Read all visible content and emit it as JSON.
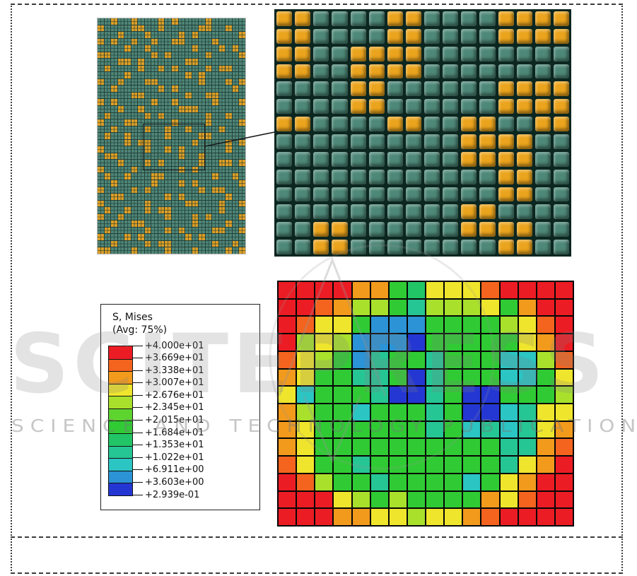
{
  "page": {
    "background": "#ffffff",
    "frame_color": "#3c3c3c"
  },
  "watermark": {
    "brand": "SCITEPRESS",
    "tagline": "SCIENCE AND TECHNOLOGY PUBLICATIONS",
    "color": "#808080"
  },
  "microstructure": {
    "description": "random two-phase RVE fine mesh, orange inclusions in teal matrix",
    "matrix_color": "#4f8577",
    "inclusion_color": "#dc9f28",
    "grid_line_color": "#223f38",
    "cols": 22,
    "rows": 35,
    "pattern": [
      "..#..#...#.#....#.....",
      "#....##..#.....##..#..",
      "...#...#....#.#......#",
      "#.#..#..#..##....#....",
      "....#..#......#...#.#.",
      "##......#.#.....#....#",
      "...##.#......##.......",
      ".#....#..#.#....#.##..",
      "....#........#.#......",
      "#..#...##......#...#.#",
      "..#......#.#........#.",
      ".....##......#..##....",
      "#.#.....#..#.....#...#",
      "...#..#.....###.......",
      ".#.....#.#......#..#..",
      "#...##.....#....#....#",
      "..#....#..#..#....#...",
      ".#..#.....#....##.....",
      "....#.##......#....#.#",
      "#......#..#.#......#..",
      ".##.........#..#......",
      "...#...#.#.....#..##.#",
      "#....#......#.#.......",
      ".#..#...##.......#..#.",
      "..#.....#...#.#......#",
      "#....#.#.......#.##...",
      "..##......#.#......#..",
      "#......#.....##...#..#",
      ".#..#..#.##.......#...",
      "#..#......#...#.#....#",
      "..#..##.......#....#..",
      ".#.....#..#.#....##..#",
      "#...#.#......#.#......",
      "..#....#.##......#..#.",
      "##...#....#...#....#.#"
    ]
  },
  "zoom_view": {
    "description": "zoomed detail of boxed mesh region",
    "matrix_color": "#4e8878",
    "inclusion_color": "#eba41d",
    "cols": 16,
    "rows": 14,
    "pattern": [
      "##....##....####",
      "##....##....####",
      "##..####........",
      "##..####........",
      "....##......####",
      "....##......####",
      "##....##..##..##",
      "..........####..",
      "..........####..",
      "............##..",
      "............##..",
      "..........##....",
      "..##......####..",
      "..##........##.."
    ]
  },
  "legend": {
    "title": "S, Mises",
    "subtitle": "(Avg: 75%)",
    "tick_labels": [
      "+4.000e+01",
      "+3.669e+01",
      "+3.338e+01",
      "+3.007e+01",
      "+2.676e+01",
      "+2.345e+01",
      "+2.015e+01",
      "+1.684e+01",
      "+1.353e+01",
      "+1.022e+01",
      "+6.911e+00",
      "+3.603e+00",
      "+2.939e-01"
    ],
    "band_colors": [
      "#ec1c24",
      "#f4641e",
      "#f29a1c",
      "#efe52c",
      "#a8e02c",
      "#5ed42e",
      "#30cb34",
      "#22c565",
      "#26c594",
      "#2bc5c3",
      "#2b93d6",
      "#2437d2"
    ]
  },
  "stress_plot": {
    "description": "von Mises stress contour on 16x14 element grid; values map to legend band colors (index 0 = max/red, 11 = min/blue)",
    "cols": 16,
    "rows": 14,
    "palette": [
      "#ec1c24",
      "#f4641e",
      "#f29a1c",
      "#efe52c",
      "#a8e02c",
      "#5ed42e",
      "#30cb34",
      "#22c565",
      "#26c594",
      "#2bc5c3",
      "#2b93d6",
      "#2437d2"
    ],
    "cells": [
      [
        0,
        0,
        0,
        0,
        2,
        2,
        6,
        7,
        3,
        3,
        3,
        1,
        0,
        0,
        0,
        0
      ],
      [
        0,
        0,
        1,
        2,
        4,
        4,
        6,
        8,
        4,
        4,
        4,
        3,
        6,
        2,
        0,
        0
      ],
      [
        0,
        1,
        3,
        3,
        6,
        10,
        10,
        10,
        6,
        6,
        6,
        6,
        4,
        3,
        1,
        0
      ],
      [
        0,
        4,
        3,
        4,
        10,
        10,
        10,
        11,
        6,
        6,
        6,
        6,
        6,
        3,
        2,
        0
      ],
      [
        1,
        3,
        4,
        6,
        10,
        8,
        6,
        6,
        8,
        6,
        6,
        6,
        9,
        9,
        4,
        1
      ],
      [
        2,
        3,
        6,
        6,
        8,
        8,
        6,
        11,
        8,
        6,
        6,
        6,
        9,
        9,
        6,
        3
      ],
      [
        3,
        9,
        6,
        6,
        6,
        8,
        11,
        11,
        8,
        6,
        11,
        11,
        6,
        6,
        6,
        4
      ],
      [
        2,
        4,
        6,
        6,
        9,
        6,
        6,
        6,
        8,
        6,
        11,
        11,
        9,
        8,
        3,
        3
      ],
      [
        2,
        3,
        6,
        6,
        6,
        6,
        6,
        6,
        8,
        6,
        9,
        8,
        9,
        8,
        3,
        2
      ],
      [
        2,
        3,
        6,
        6,
        6,
        6,
        6,
        6,
        6,
        6,
        6,
        6,
        8,
        8,
        2,
        1
      ],
      [
        1,
        3,
        6,
        6,
        8,
        6,
        6,
        6,
        6,
        6,
        6,
        6,
        8,
        3,
        2,
        0
      ],
      [
        0,
        1,
        4,
        6,
        6,
        8,
        6,
        6,
        6,
        6,
        9,
        6,
        3,
        2,
        0,
        0
      ],
      [
        0,
        0,
        0,
        3,
        4,
        6,
        4,
        6,
        6,
        6,
        6,
        2,
        3,
        1,
        0,
        0
      ],
      [
        0,
        0,
        0,
        2,
        2,
        3,
        3,
        4,
        3,
        3,
        2,
        1,
        0,
        0,
        0,
        0
      ]
    ]
  }
}
